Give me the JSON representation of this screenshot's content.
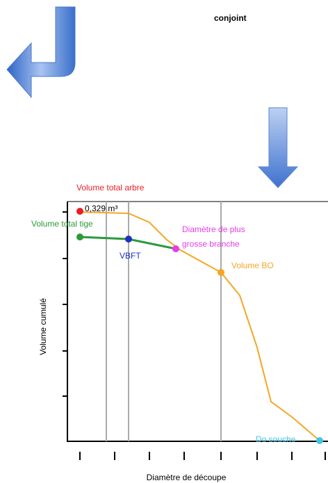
{
  "header": {
    "title": "conjoint"
  },
  "chart": {
    "labels": {
      "total_tree": "Volume total arbre",
      "total_tree_value": "0,329 m³",
      "total_stem": "Volume total tige",
      "vbft": "VBFT",
      "branch_line1": "Diamètre de plus",
      "branch_line2": "grosse branche",
      "volume_bo": "Volume BO",
      "stump": "Do souche"
    },
    "y_axis_label": "Volume cumulé",
    "x_axis_label": "Diamètre de découpe"
  }
}
